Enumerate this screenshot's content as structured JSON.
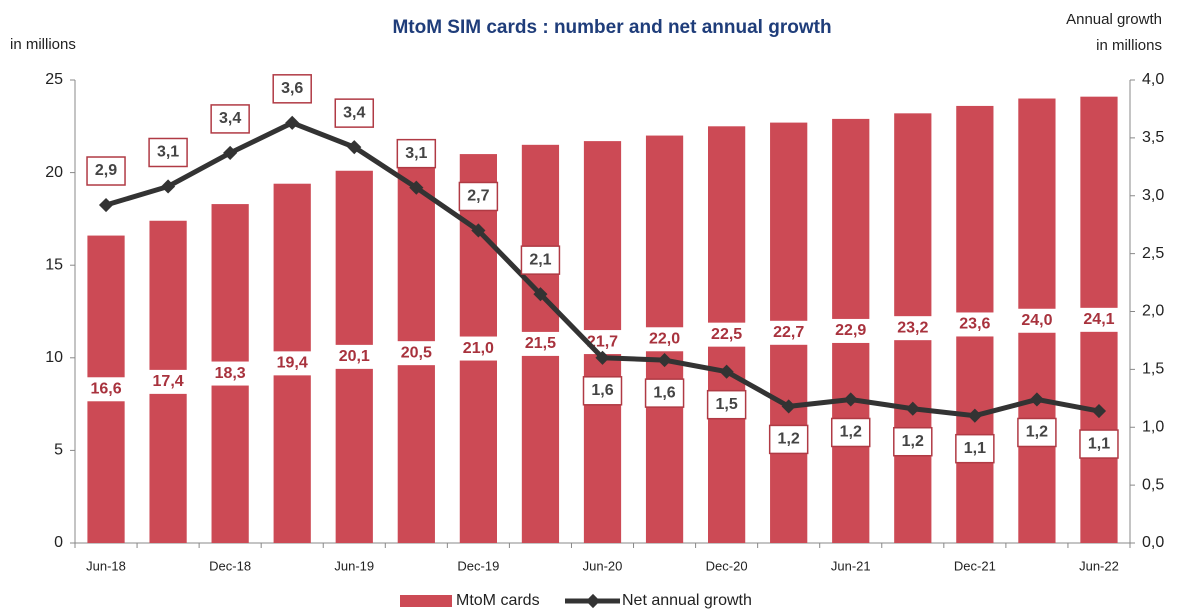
{
  "chart_data": {
    "type": "bar_line",
    "title": "MtoM SIM cards : number and net annual growth",
    "ylabel": "in millions",
    "y2label": [
      "Annual growth",
      "in millions"
    ],
    "categories": [
      "Jun-18",
      null,
      "Dec-18",
      null,
      "Jun-19",
      null,
      "Dec-19",
      null,
      "Jun-20",
      null,
      "Dec-20",
      null,
      "Jun-21",
      null,
      "Dec-21",
      null,
      "Jun-22"
    ],
    "ylim": [
      0,
      25
    ],
    "yticks": [
      0,
      5,
      10,
      15,
      20,
      25
    ],
    "y2lim": [
      0,
      4
    ],
    "y2ticks": [
      {
        "value": 0,
        "label": "0,0"
      },
      {
        "value": 0.5,
        "label": "0,5"
      },
      {
        "value": 1,
        "label": "1,0"
      },
      {
        "value": 1.5,
        "label": "1,5"
      },
      {
        "value": 2,
        "label": "2,0"
      },
      {
        "value": 2.5,
        "label": "2,5"
      },
      {
        "value": 3,
        "label": "3,0"
      },
      {
        "value": 3.5,
        "label": "3,5"
      },
      {
        "value": 4,
        "label": "4,0"
      }
    ],
    "series": [
      {
        "name": "MtoM cards",
        "type": "bar",
        "color": "#cc4a55",
        "values": [
          16.6,
          17.4,
          18.3,
          19.4,
          20.1,
          20.5,
          21.0,
          21.5,
          21.7,
          22.0,
          22.5,
          22.7,
          22.9,
          23.2,
          23.6,
          24.0,
          24.1
        ],
        "value_labels": [
          "16,6",
          "17,4",
          "18,3",
          "19,4",
          "20,1",
          "20,5",
          "21,0",
          "21,5",
          "21,7",
          "22,0",
          "22,5",
          "22,7",
          "22,9",
          "23,2",
          "23,6",
          "24,0",
          "24,1"
        ]
      },
      {
        "name": "Net annual growth",
        "type": "line",
        "axis": "y2",
        "color": "#333333",
        "values": [
          2.92,
          3.08,
          3.37,
          3.63,
          3.42,
          3.07,
          2.7,
          2.15,
          1.6,
          1.58,
          1.48,
          1.18,
          1.24,
          1.16,
          1.1,
          1.24,
          1.14
        ],
        "value_labels": [
          "2,9",
          "3,1",
          "3,4",
          "3,6",
          "3,4",
          "3,1",
          "2,7",
          "2,1",
          "1,6",
          "1,6",
          "1,5",
          "1,2",
          "1,2",
          "1,2",
          "1,1",
          "1,2",
          "1,1"
        ]
      }
    ]
  }
}
